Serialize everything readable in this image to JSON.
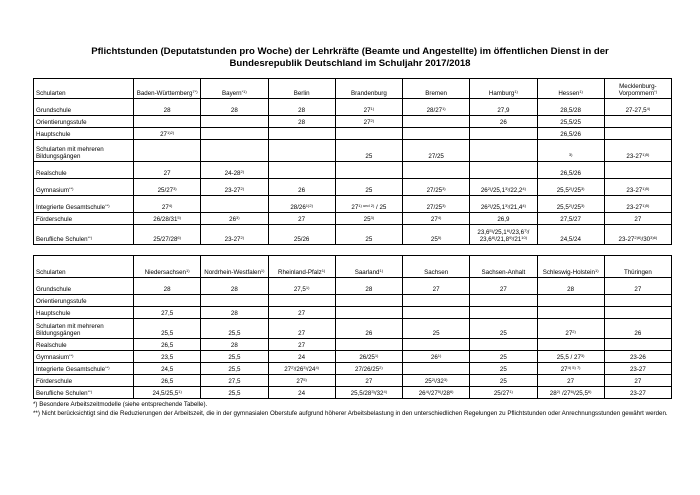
{
  "title": "Pflichtstunden (Deputatstunden pro Woche) der Lehrkräfte (Beamte und Angestellte) im öffentlichen Dienst in der Bundesrepublik Deutschland im Schuljahr 2017/2018",
  "tables": [
    {
      "header": [
        "Schularten",
        [
          "Baden-Württemberg",
          "7*)"
        ],
        [
          "Bayern",
          "*1)"
        ],
        "Berlin",
        "Brandenburg",
        "Bremen",
        [
          "Hamburg",
          "1)"
        ],
        [
          "Hessen",
          "1)"
        ],
        [
          "Mecklenburg-Vorpommern",
          "*)"
        ]
      ],
      "rows": [
        [
          "Grundschule",
          "28",
          "28",
          "28",
          [
            "27",
            "1)"
          ],
          [
            "28/27",
            "1)"
          ],
          "27,9",
          "28,5/28",
          [
            "27-27,5",
            "4)"
          ]
        ],
        [
          "Orientierungsstufe",
          null,
          null,
          "28",
          [
            "27",
            "2)"
          ],
          null,
          "26",
          "25,5/25",
          null
        ],
        [
          "Hauptschule",
          [
            "27",
            "1)2)"
          ],
          null,
          null,
          null,
          null,
          null,
          "26,5/26",
          null
        ],
        [
          "Schularten mit mehreren Bildungsgängen",
          null,
          null,
          null,
          "25",
          "27/25",
          null,
          [
            "",
            "3)"
          ],
          [
            "23-27",
            "1)5)"
          ]
        ],
        [
          "Realschule",
          "27",
          [
            "24-28",
            "2)"
          ],
          null,
          null,
          null,
          null,
          "26,5/26",
          null
        ],
        [
          [
            "Gymnasium",
            "**)"
          ],
          [
            "25/27",
            "3)"
          ],
          [
            "23-27",
            "2)"
          ],
          "26",
          "25",
          [
            "27/25",
            "3)"
          ],
          [
            "26",
            "2)",
            "/25,1",
            "3)",
            "/22,2",
            "4)"
          ],
          [
            "25,5",
            "2)",
            "/25",
            "3)"
          ],
          [
            "23-27",
            "1)5)"
          ]
        ],
        [
          [
            "Integrierte Gesamtschule",
            "**)"
          ],
          [
            "27",
            "4)"
          ],
          null,
          [
            "28/26",
            "1)2)"
          ],
          [
            "27",
            "1) und 2)",
            " / 25"
          ],
          [
            "27/25",
            "3)"
          ],
          [
            "26",
            "2)",
            "/25,1",
            "3)",
            "/21,4",
            "4)"
          ],
          [
            "25,5",
            "2)",
            "/25",
            "3)"
          ],
          [
            "23-27",
            "1)5)"
          ]
        ],
        [
          "Förderschule",
          [
            "26/28/31",
            "5)"
          ],
          [
            "26",
            "3)"
          ],
          "27",
          [
            "25",
            "3)"
          ],
          [
            "27",
            "4)"
          ],
          "26,9",
          "27,5/27",
          "27"
        ],
        [
          [
            "Berufliche Schulen",
            "**)"
          ],
          [
            "25/27/28",
            "6)"
          ],
          [
            "23-27",
            "2)"
          ],
          "25/26",
          "25",
          [
            "25",
            "5)"
          ],
          [
            "23,6",
            "5)",
            "/25,1",
            "6)",
            "/23,6",
            "7)",
            "/ 23,6",
            "8)",
            "/21,8",
            "9)",
            "/21",
            "10)"
          ],
          "24,5/24",
          [
            "23-27",
            "2)6)",
            "/30",
            "3)6)"
          ]
        ]
      ]
    },
    {
      "header": [
        "Schularten",
        [
          "Niedersachsen",
          "1)"
        ],
        [
          "Nordrhein-Westfalen",
          "1)"
        ],
        [
          "Rheinland-Pfalz",
          "1)"
        ],
        [
          "Saarland",
          "1)"
        ],
        "Sachsen",
        "Sachsen-Anhalt",
        [
          "Schleswig-Holstein",
          "1)"
        ],
        "Thüringen"
      ],
      "rows": [
        [
          "Grundschule",
          "28",
          "28",
          [
            "27,5",
            "1)"
          ],
          "28",
          "27",
          "27",
          "28",
          "27"
        ],
        [
          "Orientierungsstufe",
          null,
          null,
          null,
          null,
          null,
          null,
          null,
          null
        ],
        [
          "Hauptschule",
          "27,5",
          "28",
          "27",
          null,
          null,
          null,
          null,
          null
        ],
        [
          "Schularten mit mehreren Bildungsgängen",
          "25,5",
          "25,5",
          "27",
          "26",
          "25",
          "25",
          [
            "27",
            "2)"
          ],
          "26"
        ],
        [
          "Realschule",
          "26,5",
          "28",
          "27",
          null,
          null,
          null,
          null,
          null
        ],
        [
          [
            "Gymnasium",
            "**)"
          ],
          "23,5",
          "25,5",
          "24",
          [
            "26/25",
            "1)"
          ],
          [
            "26",
            "1)"
          ],
          "25",
          [
            "25,5 / 27",
            "3)"
          ],
          "23-26"
        ],
        [
          [
            "Integrierte Gesamtschule",
            "**)"
          ],
          "24,5",
          "25,5",
          [
            "27",
            "2)",
            "/26",
            "3)",
            "/24",
            "4)"
          ],
          [
            "27/26/25",
            "2)"
          ],
          null,
          "25",
          [
            "27",
            "4) 5) 7)"
          ],
          "23-27"
        ],
        [
          "Förderschule",
          "26,5",
          "27,5",
          [
            "27",
            "5)"
          ],
          "27",
          [
            "25",
            "2)",
            "/32",
            "3)"
          ],
          "25",
          "27",
          "27"
        ],
        [
          [
            "Berufliche Schulen",
            "**)"
          ],
          [
            "24,5/25,5",
            "1)"
          ],
          "25,5",
          "24",
          [
            "25,5/28",
            "3)",
            "/32",
            "4)"
          ],
          [
            "26",
            "4)",
            "/27",
            "5)",
            "/28",
            "6)"
          ],
          [
            "25/27",
            "1)"
          ],
          [
            "28",
            "2)",
            " /27",
            "6)",
            "/25,5",
            "6)"
          ],
          "23-27"
        ]
      ]
    }
  ],
  "footnotes": [
    "*) Besondere Arbeitszeitmodelle (siehe entsprechende Tabelle).",
    "**) Nicht berücksichtigt sind die Reduzierungen der Arbeitszeit, die in der gymnasialen Oberstufe aufgrund höherer Arbeitsbelastung in den unterschiedlichen Regelungen zu Pflichtstunden oder Anrechnungsstunden gewährt werden."
  ]
}
